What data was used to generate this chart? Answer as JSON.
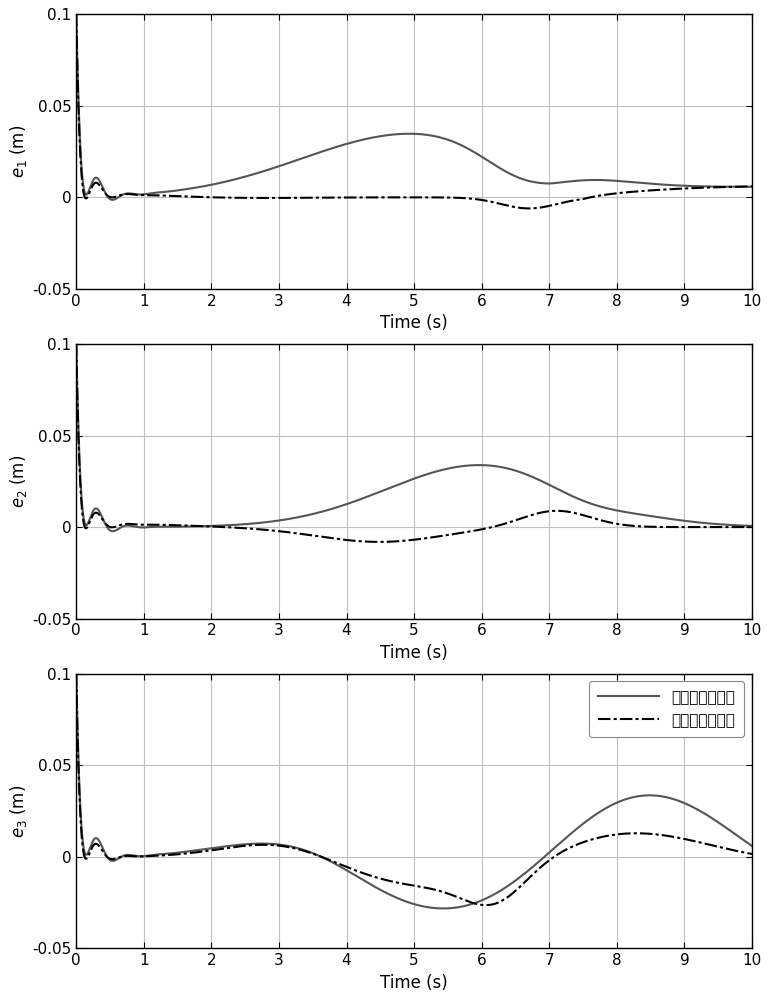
{
  "ylim": [
    -0.05,
    0.1
  ],
  "xlim": [
    0,
    10
  ],
  "yticks": [
    -0.05,
    0,
    0.05,
    0.1
  ],
  "xticks": [
    0,
    1,
    2,
    3,
    4,
    5,
    6,
    7,
    8,
    9,
    10
  ],
  "xlabel": "Time (s)",
  "ylabels": [
    "$e_1$ (m)",
    "$e_2$ (m)",
    "$e_3$ (m)"
  ],
  "legend_labels": [
    "算法实施前误差",
    "算法实施后误差"
  ],
  "line_solid_color": "#555555",
  "line_dashdot_color": "#000000",
  "background_color": "#ffffff",
  "grid_color": "#c0c0c0",
  "figsize": [
    7.7,
    10.0
  ],
  "dpi": 100
}
